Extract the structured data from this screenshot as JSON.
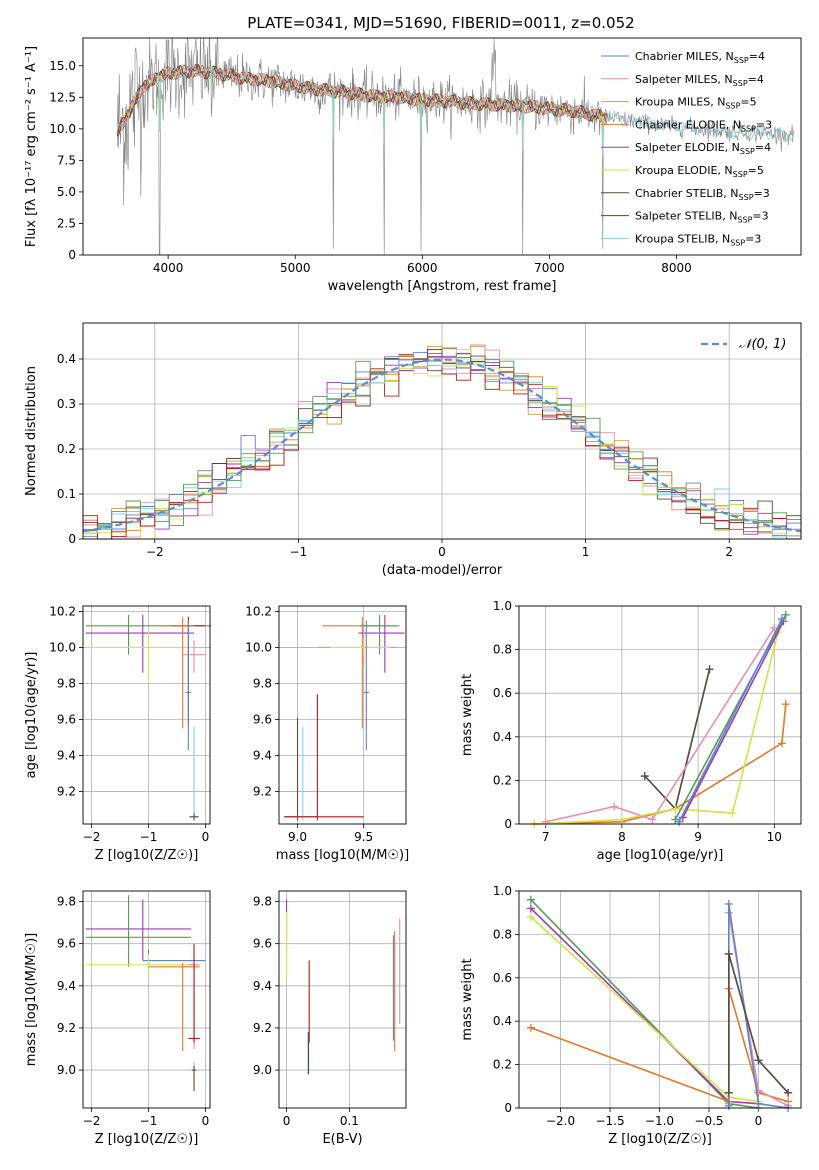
{
  "figure": {
    "title": "PLATE=0341, MJD=51690, FIBERID=0011, z=0.052"
  },
  "chart_data": [
    {
      "id": "spectrum",
      "type": "line",
      "xlabel": "wavelength [Angstrom, rest frame]",
      "ylabel": "Flux [fλ 10⁻¹⁷ erg cm⁻² s⁻¹ A⁻¹]",
      "xlim": [
        3330,
        8980
      ],
      "ylim": [
        0,
        17.2
      ],
      "xticks": [
        4000,
        5000,
        6000,
        7000,
        8000
      ],
      "yticks": [
        0.0,
        2.5,
        5.0,
        7.5,
        10.0,
        12.5,
        15.0
      ],
      "legend_position": "top-right",
      "data_range": [
        3600,
        8920
      ],
      "continuum": {
        "x": [
          3600,
          3700,
          3800,
          3900,
          4000,
          4200,
          4400,
          4600,
          4800,
          5000,
          5200,
          5400,
          5600,
          5800,
          6000,
          6200,
          6400,
          6600,
          6800,
          7000,
          7200,
          7400,
          7600,
          7800,
          8000,
          8200,
          8400,
          8600,
          8800,
          8920
        ],
        "y": [
          9.6,
          11.5,
          13.3,
          14.0,
          14.4,
          14.6,
          14.4,
          14.0,
          13.8,
          13.4,
          13.1,
          12.9,
          12.6,
          12.5,
          12.3,
          12.2,
          12.0,
          11.9,
          11.8,
          11.6,
          11.4,
          11.0,
          10.7,
          10.4,
          10.2,
          10.0,
          9.8,
          9.7,
          9.6,
          9.5
        ]
      },
      "series": [
        {
          "name": "Chabrier MILES, NSSP=4",
          "legend_text": "Chabrier MILES, N",
          "legend_sub": "SSP",
          "legend_tail": "=4",
          "color": "#5f84c9"
        },
        {
          "name": "Salpeter MILES, NSSP=4",
          "legend_text": "Salpeter MILES, N",
          "legend_sub": "SSP",
          "legend_tail": "=4",
          "color": "#e88fb0"
        },
        {
          "name": "Kroupa MILES, NSSP=5",
          "legend_text": "Kroupa MILES, N",
          "legend_sub": "SSP",
          "legend_tail": "=5",
          "color": "#c8a23a"
        },
        {
          "name": "Chabrier ELODIE, NSSP=3",
          "legend_text": "Chabrier ELODIE, N",
          "legend_sub": "SSP",
          "legend_tail": "=3",
          "color": "#e07a2a"
        },
        {
          "name": "Salpeter ELODIE, NSSP=4",
          "legend_text": "Salpeter ELODIE, N",
          "legend_sub": "SSP",
          "legend_tail": "=4",
          "color": "#9a3cb2"
        },
        {
          "name": "Kroupa ELODIE, NSSP=5",
          "legend_text": "Kroupa ELODIE, N",
          "legend_sub": "SSP",
          "legend_tail": "=5",
          "color": "#d3e34a"
        },
        {
          "name": "Chabrier STELIB, NSSP=3",
          "legend_text": "Chabrier STELIB, N",
          "legend_sub": "SSP",
          "legend_tail": "=3",
          "color": "#5a4a40"
        },
        {
          "name": "Salpeter STELIB, NSSP=3",
          "legend_text": "Salpeter STELIB, N",
          "legend_sub": "SSP",
          "legend_tail": "=3",
          "color": "#b01818"
        },
        {
          "name": "Kroupa STELIB, NSSP=3",
          "legend_text": "Kroupa STELIB, N",
          "legend_sub": "SSP",
          "legend_tail": "=3",
          "color": "#7fd4d8"
        }
      ],
      "data_color": "#808080",
      "absorption_lines": [
        {
          "x": 3934,
          "depth": 14.4
        },
        {
          "x": 4340,
          "depth": 3.5
        },
        {
          "x": 5300,
          "depth": 12.5
        },
        {
          "x": 5700,
          "depth": 12.5
        },
        {
          "x": 5990,
          "depth": 12.0
        },
        {
          "x": 6790,
          "depth": 11.8
        },
        {
          "x": 7420,
          "depth": 10.5
        }
      ]
    },
    {
      "id": "residuals",
      "type": "histogram",
      "xlabel": "(data-model)/error",
      "ylabel": "Normed distribution",
      "xlim": [
        -2.5,
        2.5
      ],
      "ylim": [
        0,
        0.48
      ],
      "xticks": [
        -2,
        -1,
        0,
        1,
        2
      ],
      "yticks": [
        0.0,
        0.1,
        0.2,
        0.3,
        0.4
      ],
      "grid": true,
      "bin_width": 0.1,
      "reference_curve": {
        "label": "𝒩(0, 1)",
        "color": "#5b8bd9",
        "style": "dashed"
      },
      "legend_position": "top-right"
    },
    {
      "id": "age-vs-Z",
      "type": "errorbar",
      "xlabel": "Z [log10(Z/Z☉)]",
      "ylabel": "age  [log10(age/yr)]",
      "xlim": [
        -2.15,
        0.08
      ],
      "ylim": [
        9.02,
        10.23
      ],
      "xticks": [
        -2,
        -1,
        0
      ],
      "yticks": [
        9.2,
        9.4,
        9.6,
        9.8,
        10.0,
        10.2
      ],
      "grid": true,
      "points": [
        {
          "color": "#5a9a5a",
          "x": -1.35,
          "y": 10.12,
          "xerr": [
            0.75,
            1.45
          ],
          "yerr": [
            0.16,
            0.06
          ]
        },
        {
          "color": "#9a3cb2",
          "x": -1.1,
          "y": 10.08,
          "xerr": [
            1.0,
            0.9
          ],
          "yerr": [
            0.22,
            0.1
          ]
        },
        {
          "color": "#d3e34a",
          "x": -1.0,
          "y": 10.0,
          "xerr": [
            1.1,
            0.8
          ],
          "yerr": [
            0.2,
            0.1
          ]
        },
        {
          "color": "#b01818",
          "x": -0.3,
          "y": 10.12,
          "xerr": [
            0.3,
            0.3
          ],
          "yerr": [
            0.55,
            0.05
          ]
        },
        {
          "color": "#e07a2a",
          "x": -0.4,
          "y": 10.12,
          "xerr": [
            0.4,
            0.2
          ],
          "yerr": [
            0.57,
            0.05
          ]
        },
        {
          "color": "#e88fb0",
          "x": -0.2,
          "y": 9.96,
          "xerr": [
            0.2,
            0.2
          ],
          "yerr": [
            0.1,
            0.08
          ]
        },
        {
          "color": "#5f84c9",
          "x": -0.3,
          "y": 9.75,
          "xerr": [
            0.05,
            0.05
          ],
          "yerr": [
            0.32,
            0.4
          ]
        },
        {
          "color": "#7fd4d8",
          "x": -0.2,
          "y": 9.06,
          "xerr": [
            0.08,
            0.08
          ],
          "yerr": [
            0.02,
            0.5
          ]
        },
        {
          "color": "#5a4a40",
          "x": -0.2,
          "y": 9.06,
          "xerr": [
            0.08,
            0.08
          ],
          "yerr": [
            0.02,
            0.02
          ]
        }
      ]
    },
    {
      "id": "age-vs-mass",
      "type": "errorbar",
      "xlabel": "mass [log10(M/M☉)]",
      "ylabel": "",
      "xlim": [
        8.86,
        9.82
      ],
      "ylim": [
        9.02,
        10.23
      ],
      "xticks": [
        9.0,
        9.5
      ],
      "yticks": [
        9.2,
        9.4,
        9.6,
        9.8,
        10.0,
        10.2
      ],
      "grid": true,
      "points": [
        {
          "color": "#e07a2a",
          "x": 9.49,
          "y": 10.12,
          "xerr": [
            0.3,
            0.25
          ],
          "yerr": [
            0.57,
            0.05
          ]
        },
        {
          "color": "#9a3cb2",
          "x": 9.66,
          "y": 10.08,
          "xerr": [
            0.2,
            0.15
          ],
          "yerr": [
            0.22,
            0.1
          ]
        },
        {
          "color": "#5a9a5a",
          "x": 9.62,
          "y": 10.12,
          "xerr": [
            0.15,
            0.15
          ],
          "yerr": [
            0.16,
            0.06
          ]
        },
        {
          "color": "#e88fb0",
          "x": 9.5,
          "y": 10.0,
          "xerr": [
            0.35,
            0.25
          ],
          "yerr": [
            0.1,
            0.1
          ]
        },
        {
          "color": "#d3e34a",
          "x": 9.5,
          "y": 10.0,
          "xerr": [
            0.25,
            0.2
          ],
          "yerr": [
            0.05,
            0.05
          ]
        },
        {
          "color": "#5f84c9",
          "x": 9.52,
          "y": 9.75,
          "xerr": [
            0.02,
            0.02
          ],
          "yerr": [
            0.32,
            0.4
          ]
        },
        {
          "color": "#5a4a40",
          "x": 9.0,
          "y": 9.06,
          "xerr": [
            0.1,
            0.15
          ],
          "yerr": [
            0.02,
            0.55
          ]
        },
        {
          "color": "#7fd4d8",
          "x": 9.04,
          "y": 9.06,
          "xerr": [
            0.1,
            0.1
          ],
          "yerr": [
            0.02,
            0.5
          ]
        },
        {
          "color": "#b01818",
          "x": 9.15,
          "y": 9.06,
          "xerr": [
            0.25,
            0.35
          ],
          "yerr": [
            0.02,
            0.68
          ]
        }
      ]
    },
    {
      "id": "weight-vs-age",
      "type": "line",
      "xlabel": "age  [log10(age/yr)]",
      "ylabel": "mass weight",
      "xlim": [
        6.65,
        10.35
      ],
      "ylim": [
        0,
        1.0
      ],
      "xticks": [
        7,
        8,
        9,
        10
      ],
      "yticks": [
        0.0,
        0.2,
        0.4,
        0.6,
        0.8,
        1.0
      ],
      "grid": true,
      "series": [
        {
          "color": "#7fd4d8",
          "x": [
            8.3,
            8.7,
            9.15
          ],
          "y": [
            0.22,
            0.07,
            0.71
          ]
        },
        {
          "color": "#5a4a40",
          "x": [
            8.3,
            8.7,
            9.15
          ],
          "y": [
            0.22,
            0.07,
            0.71
          ]
        },
        {
          "color": "#e07a2a",
          "x": [
            6.85,
            8.0,
            8.7,
            10.1,
            10.15
          ],
          "y": [
            0.0,
            0.01,
            0.07,
            0.37,
            0.55
          ]
        },
        {
          "color": "#e88fb0",
          "x": [
            7.0,
            7.9,
            8.4,
            10.0
          ],
          "y": [
            0.01,
            0.08,
            0.02,
            0.9
          ]
        },
        {
          "color": "#d3e34a",
          "x": [
            6.85,
            8.0,
            8.7,
            9.45,
            10.05
          ],
          "y": [
            0.0,
            0.02,
            0.07,
            0.05,
            0.88
          ]
        },
        {
          "color": "#9a3cb2",
          "x": [
            8.8,
            10.12
          ],
          "y": [
            0.03,
            0.93
          ]
        },
        {
          "color": "#5a9a5a",
          "x": [
            8.7,
            10.15
          ],
          "y": [
            0.02,
            0.96
          ]
        },
        {
          "color": "#5f84c9",
          "x": [
            8.75,
            10.1
          ],
          "y": [
            0.01,
            0.94
          ]
        }
      ]
    },
    {
      "id": "mass-vs-Z",
      "type": "errorbar",
      "xlabel": "Z [log10(Z/Z☉)]",
      "ylabel": "mass [log10(M/M☉)]",
      "xlim": [
        -2.15,
        0.08
      ],
      "ylim": [
        8.82,
        9.85
      ],
      "xticks": [
        -2,
        -1,
        0
      ],
      "yticks": [
        9.0,
        9.2,
        9.4,
        9.6,
        9.8
      ],
      "grid": true,
      "points": [
        {
          "color": "#9a3cb2",
          "x": -1.1,
          "y": 9.67,
          "xerr": [
            1.0,
            0.85
          ],
          "yerr": [
            0.15,
            0.14
          ]
        },
        {
          "color": "#5a9a5a",
          "x": -1.35,
          "y": 9.63,
          "xerr": [
            0.75,
            1.1
          ],
          "yerr": [
            0.14,
            0.2
          ]
        },
        {
          "color": "#5f84c9",
          "x": -1.0,
          "y": 9.52,
          "xerr": [
            0.1,
            1.0
          ],
          "yerr": [
            0.05,
            0.05
          ]
        },
        {
          "color": "#d3e34a",
          "x": -1.0,
          "y": 9.5,
          "xerr": [
            1.1,
            0.8
          ],
          "yerr": [
            0.05,
            0.05
          ]
        },
        {
          "color": "#e07a2a",
          "x": -0.4,
          "y": 9.49,
          "xerr": [
            0.6,
            0.3
          ],
          "yerr": [
            0.4,
            0.02
          ]
        },
        {
          "color": "#e88fb0",
          "x": -0.2,
          "y": 9.5,
          "xerr": [
            0.1,
            0.1
          ],
          "yerr": [
            0.4,
            0.05
          ]
        },
        {
          "color": "#b01818",
          "x": -0.2,
          "y": 9.15,
          "xerr": [
            0.1,
            0.1
          ],
          "yerr": [
            0.02,
            0.45
          ]
        },
        {
          "color": "#7fd4d8",
          "x": -0.2,
          "y": 9.0,
          "xerr": [
            0.05,
            0.05
          ],
          "yerr": [
            0.02,
            0.04
          ]
        },
        {
          "color": "#5a4a40",
          "x": -0.2,
          "y": 9.0,
          "xerr": [
            0.04,
            0.04
          ],
          "yerr": [
            0.1,
            0.02
          ]
        }
      ]
    },
    {
      "id": "mass-vs-ebv",
      "type": "errorbar",
      "xlabel": "E(B-V)",
      "ylabel": "",
      "xlim": [
        -0.012,
        0.19
      ],
      "ylim": [
        8.82,
        9.85
      ],
      "xticks": [
        0.0,
        0.1
      ],
      "yticks": [
        9.0,
        9.2,
        9.4,
        9.6,
        9.8
      ],
      "grid": true,
      "points": [
        {
          "color": "#9a3cb2",
          "x": 0.0,
          "y": 9.67,
          "xerr": [
            0.0,
            0.0
          ],
          "yerr": [
            0.05,
            0.14
          ]
        },
        {
          "color": "#d3e34a",
          "x": 0.0,
          "y": 9.55,
          "xerr": [
            0.0,
            0.0
          ],
          "yerr": [
            0.12,
            0.2
          ]
        },
        {
          "color": "#b01818",
          "x": 0.036,
          "y": 9.15,
          "xerr": [
            0.0,
            0.0
          ],
          "yerr": [
            0.02,
            0.37
          ]
        },
        {
          "color": "#7fd4d8",
          "x": 0.034,
          "y": 9.0,
          "xerr": [
            0.0,
            0.0
          ],
          "yerr": [
            0.02,
            0.18
          ]
        },
        {
          "color": "#5a4a40",
          "x": 0.035,
          "y": 9.0,
          "xerr": [
            0.0,
            0.0
          ],
          "yerr": [
            0.02,
            0.18
          ]
        },
        {
          "color": "#5f84c9",
          "x": 0.17,
          "y": 9.52,
          "xerr": [
            0.0,
            0.0
          ],
          "yerr": [
            0.38,
            0.12
          ]
        },
        {
          "color": "#e07a2a",
          "x": 0.172,
          "y": 9.49,
          "xerr": [
            0.0,
            0.0
          ],
          "yerr": [
            0.4,
            0.17
          ]
        },
        {
          "color": "#e88fb0",
          "x": 0.18,
          "y": 9.5,
          "xerr": [
            0.0,
            0.0
          ],
          "yerr": [
            0.28,
            0.22
          ]
        }
      ]
    },
    {
      "id": "weight-vs-Z",
      "type": "line",
      "xlabel": "Z [log10(Z/Z☉)]",
      "ylabel": "mass weight",
      "xlim": [
        -2.42,
        0.43
      ],
      "ylim": [
        0,
        1.0
      ],
      "xticks": [
        -2.0,
        -1.5,
        -1.0,
        -0.5,
        0.0
      ],
      "yticks": [
        0.0,
        0.2,
        0.4,
        0.6,
        0.8,
        1.0
      ],
      "grid": true,
      "series": [
        {
          "color": "#5a9a5a",
          "x": [
            -2.3,
            -0.3,
            0.0
          ],
          "y": [
            0.96,
            0.02,
            0.0
          ]
        },
        {
          "color": "#9a3cb2",
          "x": [
            -2.3,
            -0.3,
            0.0
          ],
          "y": [
            0.92,
            0.03,
            0.02
          ]
        },
        {
          "color": "#d3e34a",
          "x": [
            -2.3,
            -0.3,
            0.0
          ],
          "y": [
            0.88,
            0.05,
            0.03
          ]
        },
        {
          "color": "#e07a2a",
          "x": [
            -2.3,
            -0.3,
            -0.3,
            0.0,
            0.3
          ],
          "y": [
            0.37,
            0.03,
            0.55,
            0.07,
            0.03
          ]
        },
        {
          "color": "#e88fb0",
          "x": [
            -0.3,
            -0.3,
            0.0,
            0.3
          ],
          "y": [
            0.02,
            0.9,
            0.08,
            0.01
          ]
        },
        {
          "color": "#5f84c9",
          "x": [
            -0.3,
            -0.3,
            0.0,
            0.3
          ],
          "y": [
            0.01,
            0.94,
            0.02,
            0.0
          ]
        },
        {
          "color": "#7fd4d8",
          "x": [
            -0.3,
            -0.3,
            0.0,
            0.3
          ],
          "y": [
            0.07,
            0.71,
            0.22,
            0.07
          ]
        },
        {
          "color": "#5a4a40",
          "x": [
            -0.3,
            -0.3,
            0.0,
            0.3
          ],
          "y": [
            0.07,
            0.71,
            0.22,
            0.07
          ]
        }
      ]
    }
  ]
}
